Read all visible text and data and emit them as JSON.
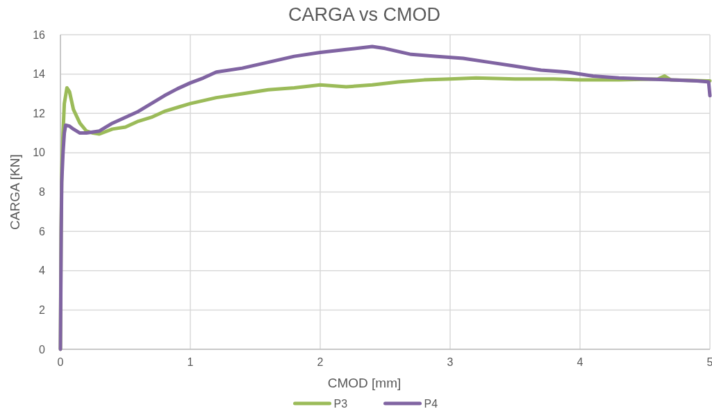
{
  "chart_data": {
    "type": "line",
    "title": "CARGA vs CMOD",
    "xlabel": "CMOD [mm]",
    "ylabel": "CARGA [KN]",
    "xlim": [
      0,
      5
    ],
    "xticks": [
      0,
      1,
      2,
      3,
      4,
      5
    ],
    "ylim": [
      0,
      16
    ],
    "yticks": [
      0,
      2,
      4,
      6,
      8,
      10,
      12,
      14,
      16
    ],
    "grid": true,
    "legend": "bottom",
    "marker": "none",
    "line_style": "solid",
    "series": [
      {
        "name": "P3",
        "color": "#9bbb59",
        "x": [
          0,
          0.005,
          0.01,
          0.02,
          0.03,
          0.05,
          0.07,
          0.1,
          0.15,
          0.2,
          0.25,
          0.3,
          0.4,
          0.5,
          0.6,
          0.7,
          0.8,
          0.9,
          1.0,
          1.2,
          1.4,
          1.6,
          1.8,
          2.0,
          2.2,
          2.4,
          2.6,
          2.8,
          3.0,
          3.2,
          3.5,
          3.8,
          4.0,
          4.3,
          4.6,
          4.65,
          4.7,
          5.0
        ],
        "values": [
          0,
          6,
          9,
          11,
          12.5,
          13.3,
          13.1,
          12.2,
          11.5,
          11.1,
          11.0,
          10.95,
          11.2,
          11.3,
          11.6,
          11.8,
          12.1,
          12.3,
          12.5,
          12.8,
          13.0,
          13.2,
          13.3,
          13.45,
          13.35,
          13.45,
          13.6,
          13.7,
          13.75,
          13.8,
          13.75,
          13.75,
          13.7,
          13.7,
          13.75,
          13.9,
          13.7,
          13.65
        ]
      },
      {
        "name": "P4",
        "color": "#8064a2",
        "x": [
          0,
          0.003,
          0.006,
          0.01,
          0.02,
          0.03,
          0.04,
          0.07,
          0.1,
          0.15,
          0.2,
          0.3,
          0.4,
          0.5,
          0.6,
          0.7,
          0.8,
          0.9,
          1.0,
          1.1,
          1.2,
          1.4,
          1.6,
          1.8,
          2.0,
          2.2,
          2.4,
          2.5,
          2.7,
          2.9,
          3.1,
          3.3,
          3.5,
          3.7,
          3.9,
          4.1,
          4.3,
          4.5,
          4.7,
          4.9,
          4.99,
          5.0
        ],
        "values": [
          0,
          3,
          6,
          8.5,
          10,
          11,
          11.4,
          11.35,
          11.2,
          11.0,
          11.0,
          11.1,
          11.5,
          11.8,
          12.1,
          12.5,
          12.9,
          13.25,
          13.55,
          13.8,
          14.1,
          14.3,
          14.6,
          14.9,
          15.1,
          15.25,
          15.4,
          15.3,
          15.0,
          14.9,
          14.8,
          14.6,
          14.4,
          14.2,
          14.1,
          13.9,
          13.8,
          13.75,
          13.7,
          13.65,
          13.6,
          12.9
        ]
      }
    ]
  }
}
